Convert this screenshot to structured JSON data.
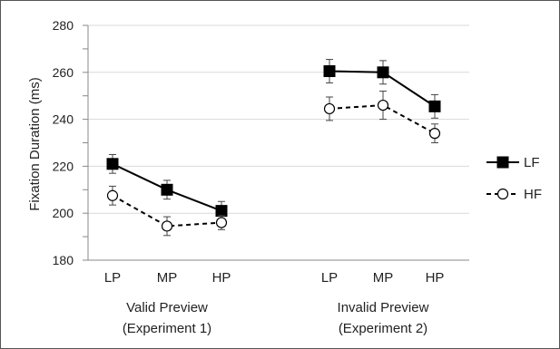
{
  "chart_data": {
    "type": "line",
    "title": "",
    "ylabel": "Fixation Duration (ms)",
    "ylim": [
      180,
      280
    ],
    "yticks": [
      180,
      200,
      220,
      240,
      260,
      280
    ],
    "grid": true,
    "legend_position": "right",
    "groups": [
      {
        "label_line1": "Valid Preview",
        "label_line2": "(Experiment 1)",
        "categories": [
          "LP",
          "MP",
          "HP"
        ]
      },
      {
        "label_line1": "Invalid Preview",
        "label_line2": "(Experiment 2)",
        "categories": [
          "LP",
          "MP",
          "HP"
        ]
      }
    ],
    "series": [
      {
        "name": "LF",
        "marker": "filled-square",
        "line_style": "solid",
        "color": "#000000",
        "groups": [
          {
            "values": [
              221,
              210,
              201
            ],
            "errors": [
              4,
              4,
              4
            ]
          },
          {
            "values": [
              260.5,
              260,
              245.5
            ],
            "errors": [
              5,
              5,
              5
            ]
          }
        ]
      },
      {
        "name": "HF",
        "marker": "open-circle",
        "line_style": "dashed",
        "color": "#000000",
        "groups": [
          {
            "values": [
              207.5,
              194.5,
              196
            ],
            "errors": [
              4,
              4,
              3
            ]
          },
          {
            "values": [
              244.5,
              246,
              234
            ],
            "errors": [
              5,
              6,
              4
            ]
          }
        ]
      }
    ]
  }
}
